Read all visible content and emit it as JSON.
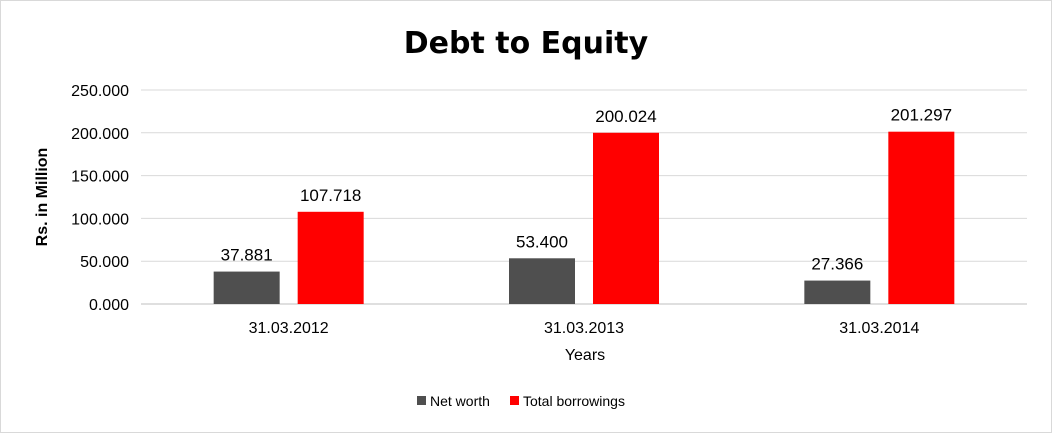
{
  "chart_data": {
    "type": "bar",
    "title": "Debt to Equity",
    "xlabel": "Years",
    "ylabel": "Rs. in Million",
    "categories": [
      "31.03.2012",
      "31.03.2013",
      "31.03.2014"
    ],
    "series": [
      {
        "name": "Net worth",
        "color": "#4f4f4f",
        "values": [
          37.881,
          53.4,
          27.366
        ],
        "labels": [
          "37.881",
          "53.400",
          "27.366"
        ]
      },
      {
        "name": "Total borrowings",
        "color": "#ff0000",
        "values": [
          107.718,
          200.024,
          201.297
        ],
        "labels": [
          "107.718",
          "200.024",
          "201.297"
        ]
      }
    ],
    "ylim": [
      0,
      250
    ],
    "yticks": [
      "0.000",
      "50.000",
      "100.000",
      "150.000",
      "200.000",
      "250.000"
    ],
    "grid": true,
    "legend_position": "bottom"
  }
}
